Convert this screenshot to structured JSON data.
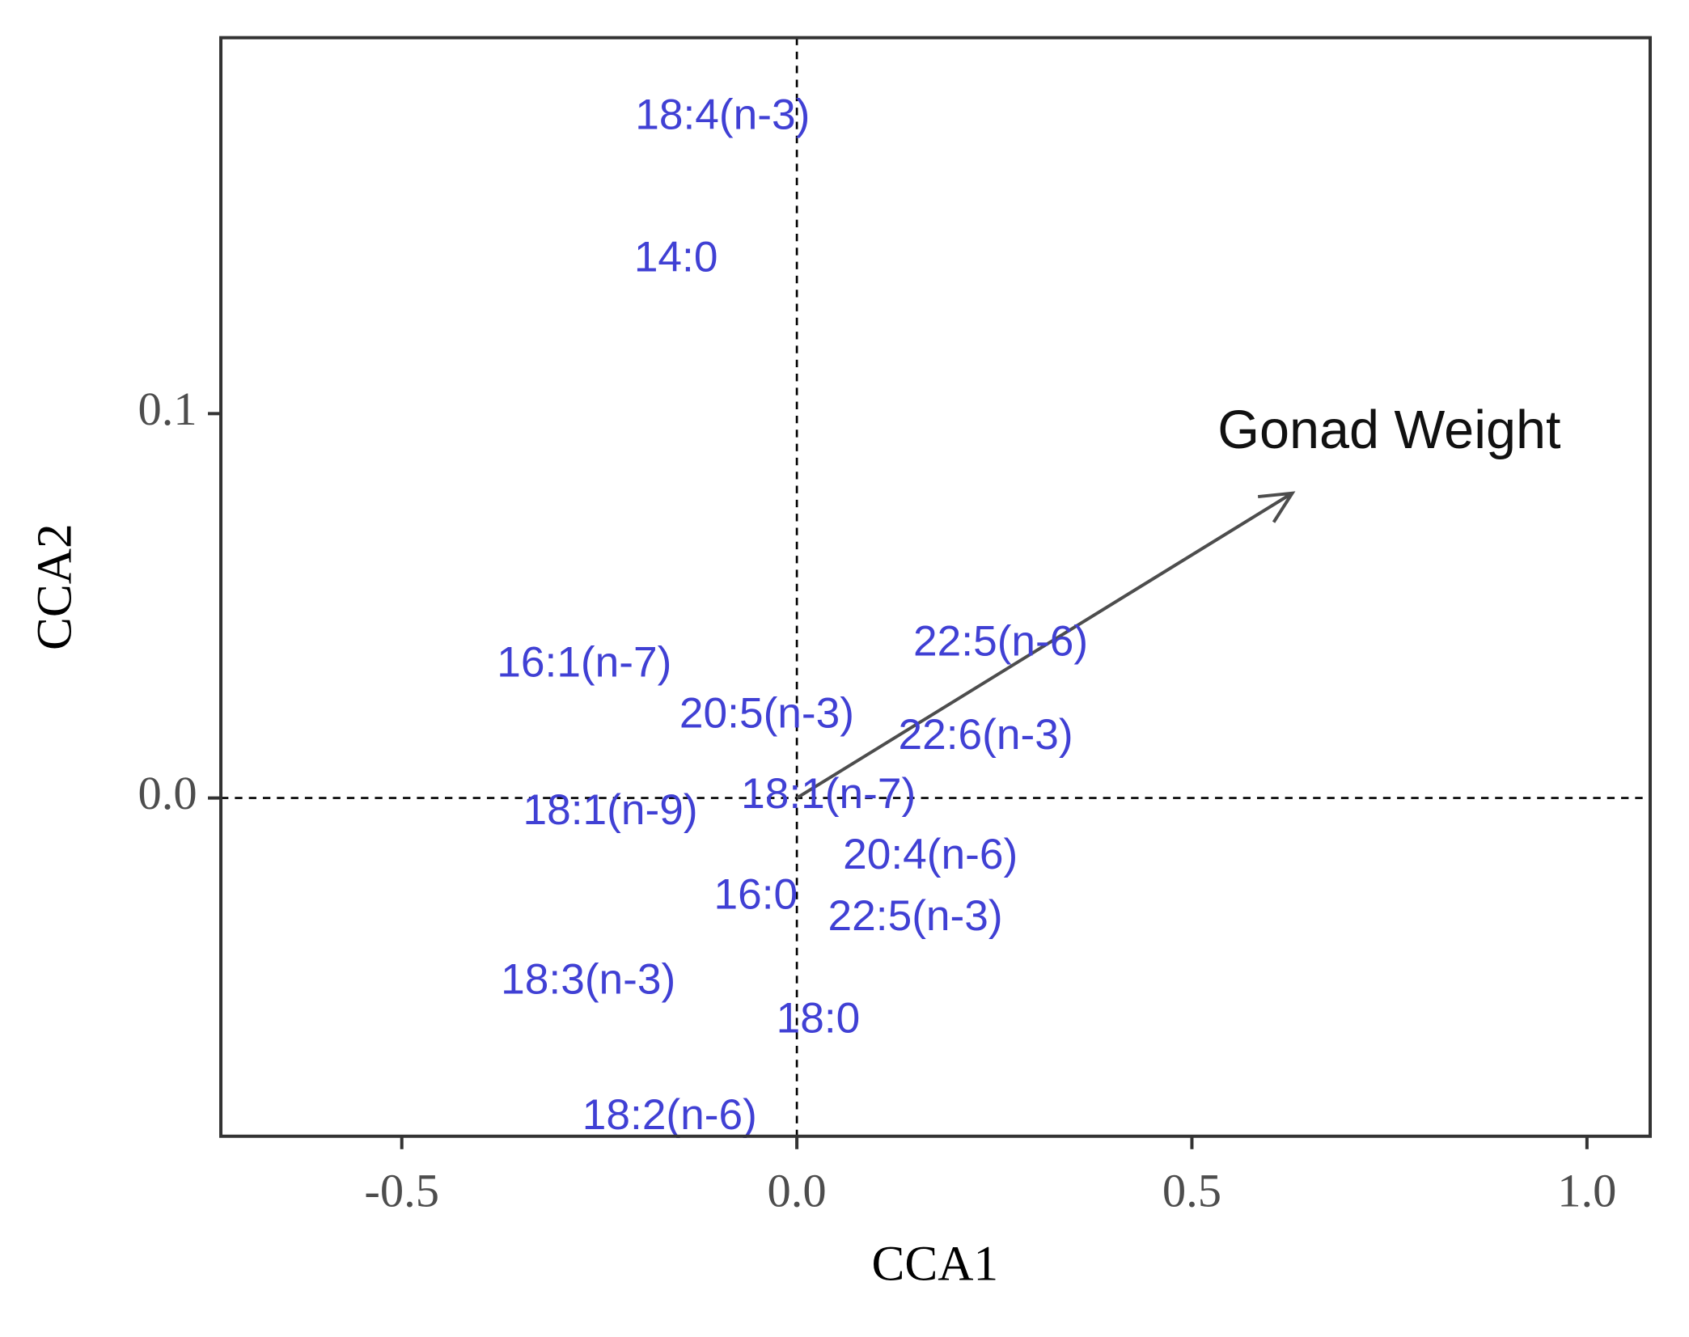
{
  "chart_data": {
    "type": "scatter",
    "xlabel": "CCA1",
    "ylabel": "CCA2",
    "xlim": [
      -0.729,
      1.08
    ],
    "ylim": [
      -0.088,
      0.1978
    ],
    "xticks": [
      -0.5,
      {
        "value": 0,
        "label": "0.0"
      },
      0.5,
      {
        "value": 1,
        "label": "1.0"
      }
    ],
    "yticks": [
      {
        "value": 0,
        "label": "0.0"
      },
      0.1
    ],
    "hline": 0,
    "vline": 0,
    "point_color": "#4040d4",
    "point_labels": [
      "18:4(n-3)",
      "14:0",
      "16:1(n-7)",
      "20:5(n-3)",
      "22:5(n-6)",
      "22:6(n-3)",
      "18:1(n-7)",
      "18:1(n-9)",
      "20:4(n-6)",
      "16:0",
      "22:5(n-3)",
      "18:3(n-3)",
      "18:0",
      "18:2(n-6)"
    ],
    "x": [
      -0.094,
      -0.153,
      -0.269,
      -0.038,
      0.258,
      0.239,
      0.04,
      -0.236,
      0.169,
      -0.052,
      0.15,
      -0.264,
      0.027,
      -0.161
    ],
    "y": [
      0.177,
      0.14,
      0.0345,
      0.0213,
      0.04,
      0.0157,
      0.0003,
      -0.0039,
      -0.0154,
      -0.0258,
      -0.0314,
      -0.0479,
      -0.058,
      -0.0832
    ],
    "arrows": [
      {
        "label": "Gonad Weight",
        "x": 0.627,
        "y": 0.0793,
        "color": "#4d4d4d"
      }
    ]
  }
}
